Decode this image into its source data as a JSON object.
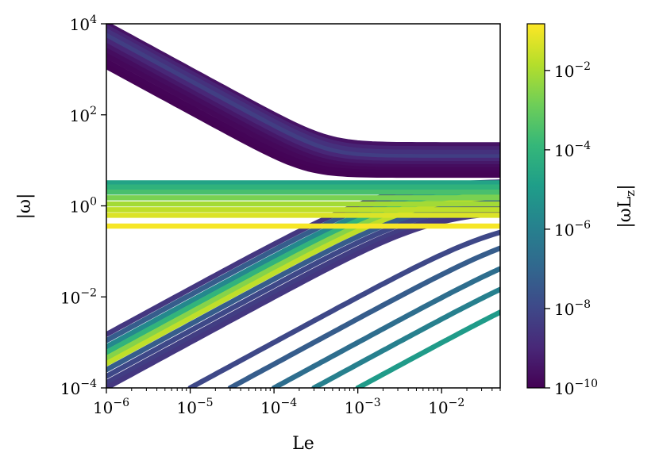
{
  "chart_data": {
    "type": "scatter",
    "title": "",
    "xlabel": "Le",
    "ylabel": "|ω|",
    "xscale": "log",
    "yscale": "log",
    "xlim": [
      1e-06,
      0.05
    ],
    "ylim": [
      0.0001,
      10000.0
    ],
    "xticks": [
      {
        "value": 1e-06,
        "base": "10",
        "exp": "−6"
      },
      {
        "value": 1e-05,
        "base": "10",
        "exp": "−5"
      },
      {
        "value": 0.0001,
        "base": "10",
        "exp": "−4"
      },
      {
        "value": 0.001,
        "base": "10",
        "exp": "−3"
      },
      {
        "value": 0.01,
        "base": "10",
        "exp": "−2"
      }
    ],
    "yticks": [
      {
        "value": 0.0001,
        "base": "10",
        "exp": "−4"
      },
      {
        "value": 0.01,
        "base": "10",
        "exp": "−2"
      },
      {
        "value": 1,
        "base": "10",
        "exp": "0"
      },
      {
        "value": 100,
        "base": "10",
        "exp": "2"
      },
      {
        "value": 10000,
        "base": "10",
        "exp": "4"
      }
    ],
    "grid": false,
    "colorbar": {
      "label": "|ωL_z|",
      "scale": "log",
      "colormap": "viridis",
      "range": [
        1e-10,
        0.15
      ],
      "ticks": [
        {
          "value": 1e-10,
          "base": "10",
          "exp": "−10"
        },
        {
          "value": 1e-08,
          "base": "10",
          "exp": "−8"
        },
        {
          "value": 1e-06,
          "base": "10",
          "exp": "−6"
        },
        {
          "value": 0.0001,
          "base": "10",
          "exp": "−4"
        },
        {
          "value": 0.01,
          "base": "10",
          "exp": "−2"
        }
      ]
    },
    "branches": {
      "descending": [
        {
          "y_at_Le_1e-6": 10000,
          "y_at_Le_0.05": 22,
          "color_value": 3e-10
        },
        {
          "y_at_Le_1e-6": 8500,
          "y_at_Le_0.05": 18,
          "color_value": 8e-10
        },
        {
          "y_at_Le_1e-6": 7000,
          "y_at_Le_0.05": 15,
          "color_value": 2e-09
        },
        {
          "y_at_Le_1e-6": 5500,
          "y_at_Le_0.05": 12,
          "color_value": 5e-09
        },
        {
          "y_at_Le_1e-6": 4300,
          "y_at_Le_0.05": 10,
          "color_value": 1e-09
        },
        {
          "y_at_Le_1e-6": 3300,
          "y_at_Le_0.05": 8.5,
          "color_value": 4e-10
        },
        {
          "y_at_Le_1e-6": 2600,
          "y_at_Le_0.05": 7.2,
          "color_value": 2e-10
        },
        {
          "y_at_Le_1e-6": 2000,
          "y_at_Le_0.05": 6.2,
          "color_value": 1.5e-10
        },
        {
          "y_at_Le_1e-6": 1500,
          "y_at_Le_0.05": 5.4,
          "color_value": 1.2e-10
        },
        {
          "y_at_Le_1e-6": 1150,
          "y_at_Le_0.05": 4.7,
          "color_value": 1.1e-10
        }
      ],
      "horizontal": [
        {
          "y": 3.2,
          "color_value": 2e-05
        },
        {
          "y": 2.6,
          "color_value": 8e-05
        },
        {
          "y": 2.0,
          "color_value": 0.0003
        },
        {
          "y": 1.5,
          "color_value": 0.002
        },
        {
          "y": 1.1,
          "color_value": 0.008
        },
        {
          "y": 0.82,
          "color_value": 0.02
        },
        {
          "y": 0.62,
          "color_value": 0.05
        },
        {
          "y": 0.36,
          "color_value": 0.12
        }
      ],
      "ascending": [
        {
          "y_at_Le_1e-6": 0.0015,
          "y_at_Le_0.05": 3.5,
          "color_value": 3e-09
        },
        {
          "y_at_Le_1e-6": 0.0011,
          "y_at_Le_0.05": 3.0,
          "color_value": 5e-08
        },
        {
          "y_at_Le_1e-6": 0.0008,
          "y_at_Le_0.05": 2.6,
          "color_value": 2e-06
        },
        {
          "y_at_Le_1e-6": 0.0006,
          "y_at_Le_0.05": 2.2,
          "color_value": 0.0001
        },
        {
          "y_at_Le_1e-6": 0.00045,
          "y_at_Le_0.05": 1.9,
          "color_value": 0.003
        },
        {
          "y_at_Le_1e-6": 0.00034,
          "y_at_Le_0.05": 1.6,
          "color_value": 0.02
        },
        {
          "y_at_Le_1e-6": 0.00025,
          "y_at_Le_0.05": 1.35,
          "color_value": 5e-08
        },
        {
          "y_at_Le_1e-6": 0.00018,
          "y_at_Le_0.05": 1.15,
          "color_value": 1e-08
        },
        {
          "y_at_Le_1e-6": 0.00013,
          "y_at_Le_0.05": 0.95,
          "color_value": 5e-09
        },
        {
          "y_at_Le_1e-6": 0.0001,
          "y_at_Le_0.05": 0.8,
          "color_value": 3e-09
        },
        {
          "y_at_Le_1e-5": 0.0001,
          "y_at_Le_0.05": 0.55,
          "color_value": 1e-08
        },
        {
          "y_at_Le_3e-5": 0.0001,
          "y_at_Le_0.05": 0.4,
          "color_value": 5e-08
        },
        {
          "y_at_Le_1e-4": 0.0001,
          "y_at_Le_0.05": 0.25,
          "color_value": 2e-07
        },
        {
          "y_at_Le_3e-4": 0.0001,
          "y_at_Le_0.05": 0.12,
          "color_value": 1e-06
        },
        {
          "y_at_Le_1e-3": 0.0001,
          "y_at_Le_0.05": 0.06,
          "color_value": 1e-05
        }
      ]
    }
  }
}
